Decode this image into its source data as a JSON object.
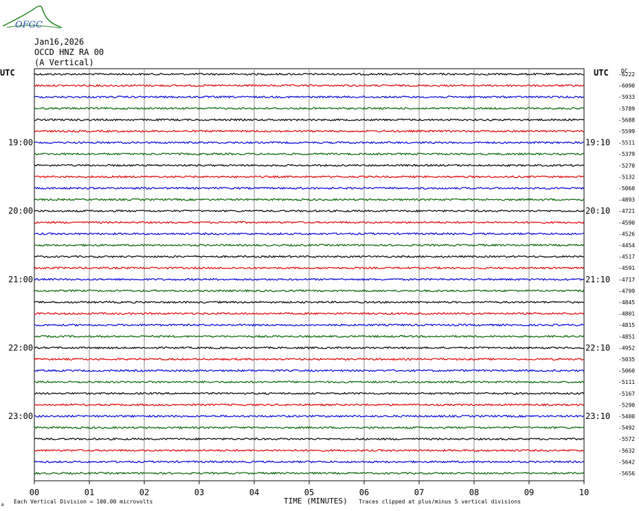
{
  "header": {
    "logo_text": "OFGC",
    "date": "Jan16,2026",
    "station": "OCCD HNZ RA 00",
    "component": "(A Vertical)",
    "utc_left": "UTC",
    "utc_right": "UTC",
    "dc_label": "DC"
  },
  "footer": {
    "scale_note": "Each Vertical Division =  100.00 microvolts",
    "xlabel": "TIME (MINUTES)",
    "clip_note": "Traces clipped at plus/minus 5 vertical divisions",
    "corner_mark": "A"
  },
  "chart_data": {
    "type": "line",
    "title": "",
    "xlabel": "TIME (MINUTES)",
    "ylabel": "",
    "xlim": [
      0,
      10
    ],
    "x_ticks": [
      "00",
      "01",
      "02",
      "03",
      "04",
      "05",
      "06",
      "07",
      "08",
      "09",
      "10"
    ],
    "trace_count": 36,
    "trace_colors": [
      "#000000",
      "#e00000",
      "#0000d8",
      "#006400"
    ],
    "hour_labels_left": [
      {
        "trace": 6,
        "label": "19:00"
      },
      {
        "trace": 12,
        "label": "20:00"
      },
      {
        "trace": 18,
        "label": "21:00"
      },
      {
        "trace": 24,
        "label": "22:00"
      },
      {
        "trace": 30,
        "label": "23:00"
      }
    ],
    "hour_labels_right": [
      {
        "trace": 6,
        "label": "19:10"
      },
      {
        "trace": 12,
        "label": "20:10"
      },
      {
        "trace": 18,
        "label": "21:10"
      },
      {
        "trace": 24,
        "label": "22:10"
      },
      {
        "trace": 30,
        "label": "23:10"
      }
    ],
    "dc_offsets": [
      "-6222",
      "-6090",
      "-5933",
      "-5789",
      "-5688",
      "-5599",
      "-5511",
      "-5379",
      "-5270",
      "-5132",
      "-5060",
      "-4893",
      "-4721",
      "-4590",
      "-4526",
      "-4454",
      "-4517",
      "-4591",
      "-4717",
      "-4799",
      "-4845",
      "-4801",
      "-4815",
      "-4851",
      "-4952",
      "-5035",
      "-5060",
      "-5111",
      "-5167",
      "-5290",
      "-5400",
      "-5492",
      "-5572",
      "-5632",
      "-5642",
      "-5656"
    ],
    "grid": true,
    "legend": "none"
  }
}
